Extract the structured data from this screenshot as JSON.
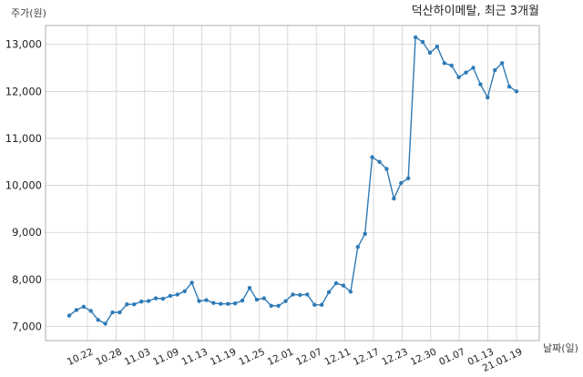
{
  "chart_data": {
    "type": "line",
    "title": "덕산하이메탈, 최근 3개월",
    "ylabel": "주가(원)",
    "xlabel": "날짜(일)",
    "ylim": [
      6700,
      13400
    ],
    "yticks": [
      7000,
      8000,
      9000,
      10000,
      11000,
      12000,
      13000
    ],
    "ytick_labels": [
      "7,000",
      "8,000",
      "9,000",
      "10,000",
      "11,000",
      "12,000",
      "13,000"
    ],
    "xtick_labels": [
      "10.22",
      "10.28",
      "11.03",
      "11.09",
      "11.13",
      "11.19",
      "11.25",
      "12.01",
      "12.07",
      "12.11",
      "12.17",
      "12.23",
      "12.30",
      "01.07",
      "01.13",
      "21.01.19"
    ],
    "grid": true,
    "color": "#2e7ab6",
    "values": [
      7230,
      7350,
      7420,
      7330,
      7140,
      7060,
      7300,
      7300,
      7470,
      7470,
      7530,
      7540,
      7600,
      7590,
      7650,
      7680,
      7750,
      7930,
      7540,
      7560,
      7500,
      7480,
      7480,
      7490,
      7550,
      7820,
      7570,
      7600,
      7440,
      7440,
      7540,
      7680,
      7670,
      7680,
      7460,
      7460,
      7730,
      7920,
      7870,
      7740,
      8690,
      8970,
      10600,
      10500,
      10350,
      9720,
      10050,
      10150,
      13150,
      13050,
      12820,
      12950,
      12600,
      12550,
      12300,
      12400,
      12500,
      12150,
      11870,
      12450,
      12600,
      12100,
      12000
    ]
  }
}
